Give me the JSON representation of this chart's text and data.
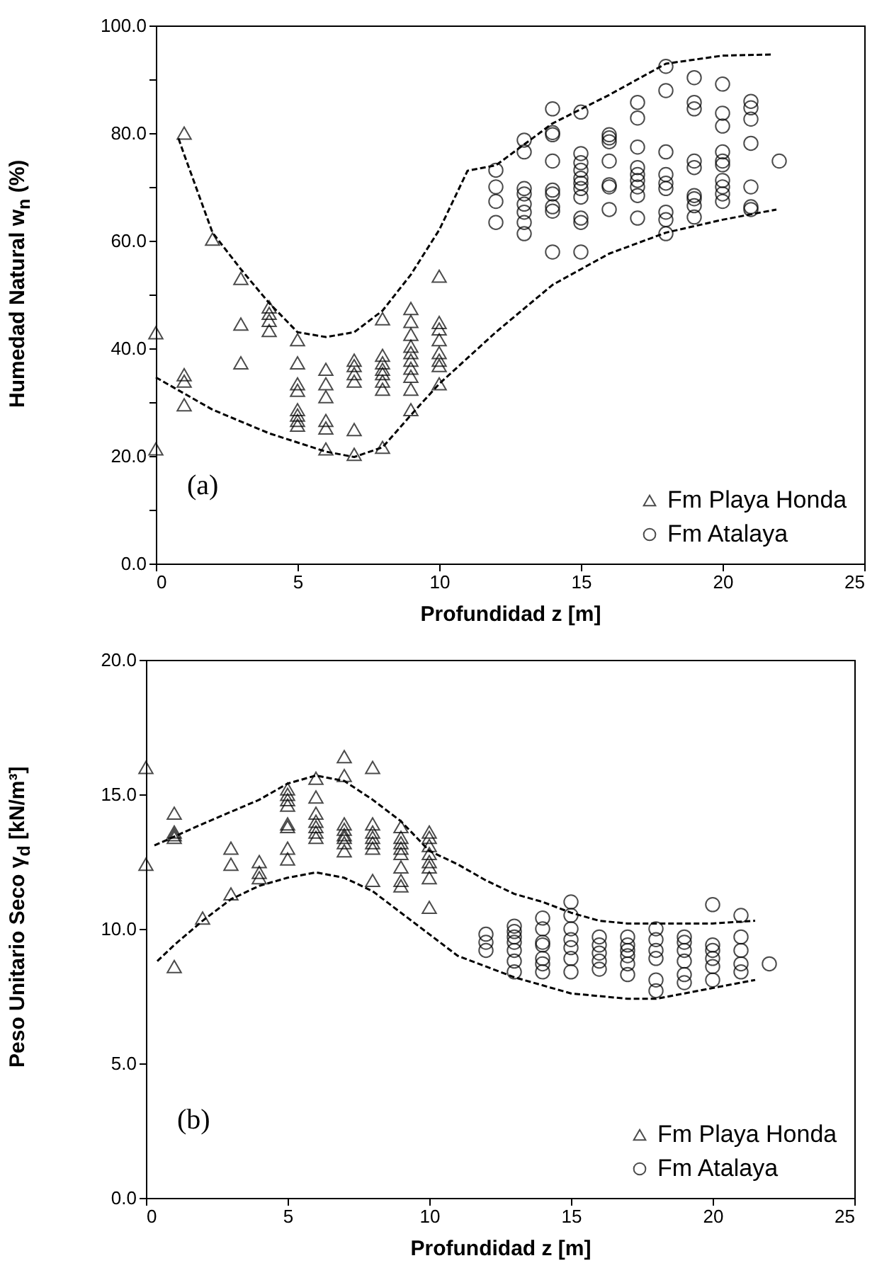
{
  "chart_data": [
    {
      "type": "scatter",
      "xlabel": "Profundidad z [m]",
      "ylabel": "Humedad Natural w$_{n}$ (%)",
      "annotations": [
        "(a)"
      ],
      "xlim": [
        0,
        25
      ],
      "xticks": [
        0,
        5,
        10,
        15,
        20,
        25
      ],
      "ylim": [
        0,
        100
      ],
      "yticks": [
        {
          "value": 0,
          "label": "0.0"
        },
        {
          "value": 10,
          "label": null
        },
        {
          "value": 20,
          "label": "20.0"
        },
        {
          "value": 30,
          "label": null
        },
        {
          "value": 40,
          "label": "40.0"
        },
        {
          "value": 50,
          "label": null
        },
        {
          "value": 60,
          "label": "60.0"
        },
        {
          "value": 70,
          "label": null
        },
        {
          "value": 80,
          "label": "80.0"
        },
        {
          "value": 90,
          "label": null
        },
        {
          "value": 100,
          "label": "100.0"
        }
      ],
      "legend": "bottom right",
      "series": [
        {
          "name": "Fm Playa Honda",
          "type": "scatter",
          "marker": "triangle",
          "color": "#000000",
          "x": [
            0,
            0,
            1,
            1,
            1,
            1,
            2,
            3,
            3,
            3,
            4,
            4,
            4,
            4,
            5,
            5,
            5,
            5,
            5,
            5,
            5,
            5,
            6,
            6,
            6,
            6,
            6,
            6,
            7,
            7,
            7,
            7,
            7,
            7,
            8,
            8,
            8,
            8,
            8,
            8,
            8,
            8,
            9,
            9,
            9,
            9,
            9,
            9,
            9,
            9,
            9,
            9,
            10,
            10,
            10,
            10,
            10,
            10,
            10,
            10
          ],
          "values": [
            42.9,
            21.3,
            80,
            35.1,
            33.9,
            29.5,
            60.3,
            53,
            44.5,
            37.3,
            47.7,
            46.5,
            45.2,
            43.3,
            41.6,
            37.3,
            33.4,
            32.2,
            28.6,
            27.6,
            26.6,
            25.7,
            36.1,
            33.4,
            31,
            26.6,
            25.2,
            21.3,
            37.8,
            36.8,
            35.3,
            33.9,
            24.9,
            20.3,
            45.5,
            38.7,
            37.3,
            36.1,
            35.3,
            33.9,
            32.4,
            21.6,
            47.4,
            45,
            42.6,
            40.4,
            39.2,
            37.8,
            36.3,
            34.8,
            32.4,
            28.6,
            53.4,
            44.8,
            43.6,
            41.6,
            39.2,
            37.8,
            36.8,
            33.4
          ]
        },
        {
          "name": "Fm Atalaya",
          "type": "scatter",
          "marker": "circle",
          "color": "#000000",
          "x": [
            12,
            12,
            12,
            12,
            13,
            13,
            13,
            13,
            13,
            13,
            13,
            13,
            14,
            14,
            14,
            14,
            14,
            14,
            14,
            14,
            14,
            15,
            15,
            15,
            15,
            15,
            15,
            15,
            15,
            15,
            15,
            15,
            16,
            16,
            16,
            16,
            16,
            16,
            16,
            17,
            17,
            17,
            17,
            17,
            17,
            17,
            17,
            17,
            18,
            18,
            18,
            18,
            18,
            18,
            18,
            18,
            18,
            19,
            19,
            19,
            19,
            19,
            19,
            19,
            19,
            19,
            20,
            20,
            20,
            20,
            20,
            20,
            20,
            20,
            20,
            20,
            21,
            21,
            21,
            21,
            21,
            21,
            21,
            22
          ],
          "values": [
            73.1,
            70,
            67.3,
            63.4,
            78.7,
            76.5,
            69.7,
            68.7,
            66.8,
            65.3,
            63.4,
            61.3,
            84.5,
            80.1,
            79.7,
            74.8,
            69.4,
            68.7,
            66.3,
            65.5,
            57.9,
            83.9,
            76.2,
            74.5,
            73.1,
            71.6,
            70.7,
            69.7,
            68.1,
            64.2,
            63.4,
            57.9,
            79.7,
            79.1,
            78.4,
            74.8,
            70.4,
            70,
            65.8,
            85.7,
            82.8,
            77.4,
            73.6,
            72.3,
            71.2,
            70,
            68.4,
            64.2,
            92.4,
            87.9,
            76.5,
            72.3,
            70.7,
            69.7,
            65.3,
            63.9,
            61.3,
            90.3,
            85.7,
            84.5,
            74.8,
            73.6,
            68.4,
            67.8,
            66.5,
            64.4,
            89.1,
            83.7,
            81.3,
            76.5,
            74.8,
            74.1,
            71.2,
            70,
            68.7,
            67.3,
            85.9,
            84.7,
            82.6,
            78.1,
            70,
            66.3,
            65.8,
            74.8
          ]
        },
        {
          "type": "line",
          "line_style": "dashed",
          "marker": "none",
          "color": "#000000",
          "x": [
            0.8,
            1,
            2,
            3,
            4,
            5,
            6,
            7,
            8,
            9,
            10,
            11,
            12,
            14,
            16,
            18,
            20,
            21.7
          ],
          "values": [
            79,
            76,
            61.5,
            54.7,
            48.4,
            43,
            42.1,
            43,
            47,
            53.7,
            62,
            73,
            74,
            81.8,
            87.1,
            92.9,
            94.4,
            94.6
          ]
        },
        {
          "type": "line",
          "line_style": "dashed",
          "marker": "none",
          "color": "#000000",
          "x": [
            0,
            2,
            4,
            6,
            7,
            8,
            9,
            10,
            11,
            12,
            14,
            16,
            18,
            20,
            21.9
          ],
          "values": [
            34.6,
            28.6,
            24.2,
            20.8,
            19.8,
            21.6,
            27.6,
            33.4,
            38.2,
            43,
            51.8,
            57.6,
            61.5,
            63.9,
            65.8
          ]
        }
      ]
    },
    {
      "type": "scatter",
      "xlabel": "Profundidad z [m]",
      "ylabel": "Peso Unitario Seco γ$_{d}$ [kN/m³]",
      "annotations": [
        "(b)"
      ],
      "xlim": [
        0,
        25
      ],
      "xticks": [
        0,
        5,
        10,
        15,
        20,
        25
      ],
      "ylim": [
        0,
        20
      ],
      "yticks": [
        {
          "value": 0,
          "label": "0.0"
        },
        {
          "value": 5,
          "label": "5.0"
        },
        {
          "value": 10,
          "label": "10.0"
        },
        {
          "value": 15,
          "label": "15.0"
        },
        {
          "value": 20,
          "label": "20.0"
        }
      ],
      "legend": "bottom right",
      "series": [
        {
          "name": "Fm Playa Honda",
          "type": "scatter",
          "marker": "triangle",
          "color": "#000000",
          "x": [
            0,
            0,
            1,
            1,
            1,
            1,
            1,
            2,
            3,
            3,
            3,
            4,
            4,
            4,
            5,
            5,
            5,
            5,
            5,
            5,
            5,
            5,
            6,
            6,
            6,
            6,
            6,
            6,
            6,
            7,
            7,
            7,
            7,
            7,
            7,
            7,
            7,
            8,
            8,
            8,
            8,
            8,
            8,
            8,
            9,
            9,
            9,
            9,
            9,
            9,
            9,
            9,
            10,
            10,
            10,
            10,
            10,
            10,
            10,
            10
          ],
          "values": [
            16,
            12.4,
            14.3,
            13.6,
            13.5,
            13.4,
            8.6,
            10.4,
            13,
            12.4,
            11.3,
            12.5,
            12.1,
            11.9,
            15.2,
            15,
            14.8,
            14.6,
            13.9,
            13.8,
            13,
            12.6,
            15.6,
            14.9,
            14.3,
            14,
            13.8,
            13.6,
            13.4,
            16.4,
            15.7,
            13.9,
            13.7,
            13.5,
            13.4,
            13.2,
            12.9,
            16,
            13.9,
            13.6,
            13.4,
            13.2,
            13,
            11.8,
            13.8,
            13.4,
            13.2,
            13,
            12.8,
            12.3,
            11.8,
            11.6,
            13.6,
            13.4,
            13.1,
            12.8,
            12.5,
            12.3,
            11.9,
            10.8
          ]
        },
        {
          "name": "Fm Atalaya",
          "type": "scatter",
          "marker": "circle",
          "color": "#000000",
          "x": [
            12,
            12,
            12,
            13,
            13,
            13,
            13,
            13,
            13,
            13,
            14,
            14,
            14,
            14,
            14,
            14,
            14,
            15,
            15,
            15,
            15,
            15,
            15,
            15,
            16,
            16,
            16,
            16,
            16,
            17,
            17,
            17,
            17,
            17,
            17,
            18,
            18,
            18,
            18,
            18,
            18,
            19,
            19,
            19,
            19,
            19,
            19,
            20,
            20,
            20,
            20,
            20,
            20,
            21,
            21,
            21,
            21,
            21,
            22
          ],
          "values": [
            9.8,
            9.5,
            9.2,
            10.1,
            9.9,
            9.7,
            9.5,
            9.2,
            8.8,
            8.4,
            10.4,
            10,
            9.5,
            9.4,
            8.9,
            8.7,
            8.4,
            11,
            10.5,
            10,
            9.6,
            9.3,
            8.9,
            8.4,
            9.7,
            9.4,
            9.1,
            8.8,
            8.5,
            9.7,
            9.4,
            9.2,
            9,
            8.7,
            8.3,
            10,
            9.6,
            9.2,
            8.9,
            8.1,
            7.7,
            9.7,
            9.5,
            9.2,
            8.8,
            8.3,
            8,
            10.9,
            9.4,
            9.2,
            8.9,
            8.6,
            8.1,
            10.5,
            9.7,
            9.2,
            8.7,
            8.4,
            8.7
          ]
        },
        {
          "type": "line",
          "line_style": "dashed",
          "marker": "none",
          "color": "#000000",
          "x": [
            0.3,
            2,
            4,
            5,
            6,
            7,
            8,
            9,
            10,
            11,
            12,
            13,
            14,
            15,
            16,
            17,
            18,
            19,
            20,
            21.5
          ],
          "values": [
            13.1,
            13.9,
            14.8,
            15.4,
            15.7,
            15.5,
            14.8,
            14,
            12.9,
            12.4,
            11.8,
            11.3,
            11,
            10.6,
            10.3,
            10.2,
            10.2,
            10.2,
            10.2,
            10.3
          ]
        },
        {
          "type": "line",
          "line_style": "dashed",
          "marker": "none",
          "color": "#000000",
          "x": [
            0.4,
            1,
            2,
            3,
            4,
            5,
            6,
            7,
            8,
            9,
            10,
            11,
            12,
            13,
            14,
            15,
            16,
            17,
            18,
            19,
            20,
            21.5
          ],
          "values": [
            8.8,
            9.4,
            10.3,
            11.1,
            11.6,
            11.9,
            12.1,
            11.9,
            11.4,
            10.6,
            9.8,
            9,
            8.6,
            8.2,
            7.9,
            7.6,
            7.5,
            7.4,
            7.4,
            7.6,
            7.8,
            8.1
          ]
        }
      ]
    }
  ]
}
